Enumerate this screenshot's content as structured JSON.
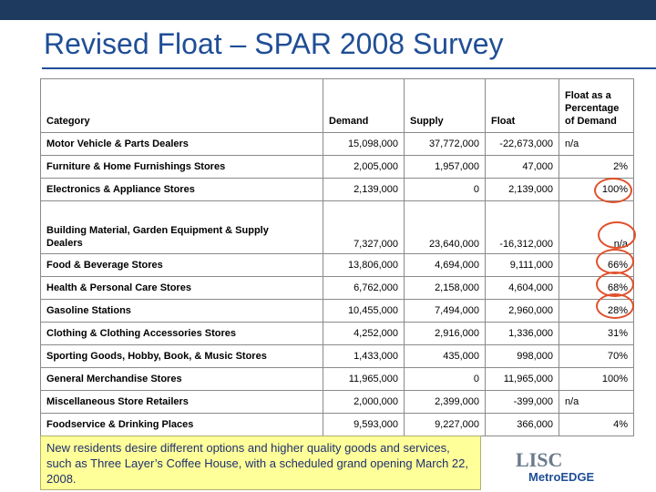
{
  "title": "Revised Float – SPAR 2008 Survey",
  "table": {
    "headers": {
      "category": "Category",
      "demand": "Demand",
      "supply": "Supply",
      "float": "Float",
      "pct_line1": "Float as a",
      "pct_line2": "Percentage",
      "pct_line3": "of Demand"
    },
    "rows": [
      {
        "category": "Motor Vehicle & Parts Dealers",
        "demand": "15,098,000",
        "supply": "37,772,000",
        "float": "-22,673,000",
        "pct": "n/a"
      },
      {
        "category": "Furniture & Home Furnishings Stores",
        "demand": "2,005,000",
        "supply": "1,957,000",
        "float": "47,000",
        "pct": "2%"
      },
      {
        "category": "Electronics & Appliance Stores",
        "demand": "2,139,000",
        "supply": "0",
        "float": "2,139,000",
        "pct": "100%"
      },
      {
        "category_line1": "Building Material, Garden Equipment & Supply",
        "category_line2": "Dealers",
        "demand": "7,327,000",
        "supply": "23,640,000",
        "float": "-16,312,000",
        "pct": "n/a"
      },
      {
        "category": "Food & Beverage Stores",
        "demand": "13,806,000",
        "supply": "4,694,000",
        "float": "9,111,000",
        "pct": "66%"
      },
      {
        "category": "Health & Personal Care Stores",
        "demand": "6,762,000",
        "supply": "2,158,000",
        "float": "4,604,000",
        "pct": "68%"
      },
      {
        "category": "Gasoline Stations",
        "demand": "10,455,000",
        "supply": "7,494,000",
        "float": "2,960,000",
        "pct": "28%"
      },
      {
        "category": "Clothing & Clothing Accessories Stores",
        "demand": "4,252,000",
        "supply": "2,916,000",
        "float": "1,336,000",
        "pct": "31%"
      },
      {
        "category": "Sporting Goods, Hobby, Book, & Music Stores",
        "demand": "1,433,000",
        "supply": "435,000",
        "float": "998,000",
        "pct": "70%"
      },
      {
        "category": "General Merchandise Stores",
        "demand": "11,965,000",
        "supply": "0",
        "float": "11,965,000",
        "pct": "100%"
      },
      {
        "category": "Miscellaneous Store Retailers",
        "demand": "2,000,000",
        "supply": "2,399,000",
        "float": "-399,000",
        "pct": "n/a"
      },
      {
        "category": "Foodservice & Drinking Places",
        "demand": "9,593,000",
        "supply": "9,227,000",
        "float": "366,000",
        "pct": "4%"
      }
    ]
  },
  "callout": "New residents desire different options and higher quality goods and services, such as Three Layer’s Coffee House, with a scheduled grand opening March 22, 2008.",
  "logo": {
    "top": "LISC",
    "bottom": "MetroEDGE"
  },
  "colors": {
    "title": "#1f4e96",
    "top_bar": "#1f3a5f",
    "highlight_circle": "#e0502a",
    "callout_bg": "#ffff99"
  }
}
